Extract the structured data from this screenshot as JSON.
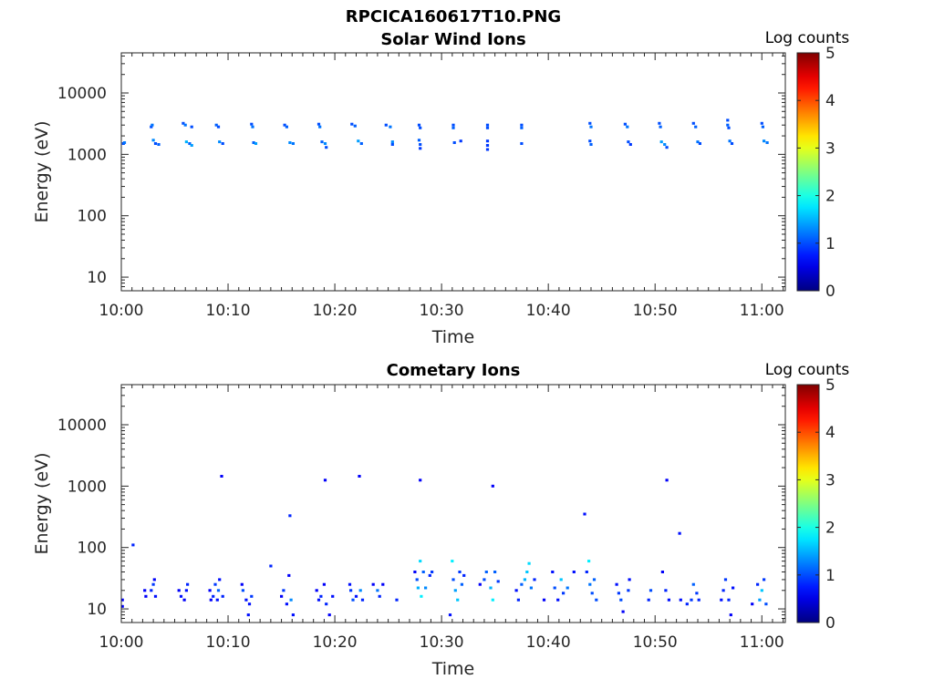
{
  "figure_title": "RPCICA160617T10.PNG",
  "chart_data": [
    {
      "type": "heatmap",
      "title": "Solar Wind Ions",
      "xlabel": "Time",
      "ylabel": "Energy (eV)",
      "x_ticks": [
        "10:00",
        "10:10",
        "10:20",
        "10:30",
        "10:40",
        "10:50",
        "11:00"
      ],
      "xlim_minutes": [
        0,
        62.2
      ],
      "y_scale": "log",
      "ylim": [
        6,
        45000
      ],
      "y_ticks": [
        10,
        100,
        1000,
        10000
      ],
      "y_tick_labels": [
        "10",
        "100",
        "1000",
        "10000"
      ],
      "colorbar": {
        "label": "Log counts",
        "range": [
          0,
          5
        ],
        "ticks": [
          "0",
          "1",
          "2",
          "3",
          "4",
          "5"
        ]
      },
      "points": [
        {
          "t": 0.2,
          "e": 1500,
          "v": 1.0
        },
        {
          "t": 0.3,
          "e": 1550,
          "v": 1.2
        },
        {
          "t": 2.8,
          "e": 2800,
          "v": 1.0
        },
        {
          "t": 2.9,
          "e": 3000,
          "v": 1.2
        },
        {
          "t": 3.0,
          "e": 1700,
          "v": 1.3
        },
        {
          "t": 3.2,
          "e": 1500,
          "v": 1.0
        },
        {
          "t": 3.5,
          "e": 1450,
          "v": 1.1
        },
        {
          "t": 5.8,
          "e": 3200,
          "v": 1.0
        },
        {
          "t": 6.0,
          "e": 3000,
          "v": 1.2
        },
        {
          "t": 6.1,
          "e": 1600,
          "v": 1.5
        },
        {
          "t": 6.4,
          "e": 1500,
          "v": 1.1
        },
        {
          "t": 6.6,
          "e": 1400,
          "v": 1.4
        },
        {
          "t": 6.6,
          "e": 2800,
          "v": 1.0
        },
        {
          "t": 8.9,
          "e": 3000,
          "v": 1.1
        },
        {
          "t": 9.1,
          "e": 2800,
          "v": 1.0
        },
        {
          "t": 9.2,
          "e": 1600,
          "v": 1.3
        },
        {
          "t": 9.5,
          "e": 1500,
          "v": 1.0
        },
        {
          "t": 12.2,
          "e": 3100,
          "v": 1.0
        },
        {
          "t": 12.3,
          "e": 2800,
          "v": 1.2
        },
        {
          "t": 12.4,
          "e": 1550,
          "v": 1.1
        },
        {
          "t": 12.6,
          "e": 1500,
          "v": 1.4
        },
        {
          "t": 15.3,
          "e": 3000,
          "v": 1.0
        },
        {
          "t": 15.5,
          "e": 2800,
          "v": 1.1
        },
        {
          "t": 15.8,
          "e": 1550,
          "v": 1.3
        },
        {
          "t": 16.1,
          "e": 1500,
          "v": 1.2
        },
        {
          "t": 18.5,
          "e": 3100,
          "v": 1.0
        },
        {
          "t": 18.6,
          "e": 2800,
          "v": 1.2
        },
        {
          "t": 18.8,
          "e": 1600,
          "v": 1.1
        },
        {
          "t": 19.1,
          "e": 1500,
          "v": 1.3
        },
        {
          "t": 19.2,
          "e": 1300,
          "v": 1.0
        },
        {
          "t": 21.6,
          "e": 3100,
          "v": 1.0
        },
        {
          "t": 21.9,
          "e": 2900,
          "v": 1.1
        },
        {
          "t": 22.2,
          "e": 1650,
          "v": 1.4
        },
        {
          "t": 22.5,
          "e": 1500,
          "v": 1.1
        },
        {
          "t": 24.8,
          "e": 3000,
          "v": 1.0
        },
        {
          "t": 25.2,
          "e": 2800,
          "v": 1.2
        },
        {
          "t": 25.4,
          "e": 1600,
          "v": 1.3
        },
        {
          "t": 25.4,
          "e": 1450,
          "v": 1.0
        },
        {
          "t": 27.9,
          "e": 3000,
          "v": 1.0
        },
        {
          "t": 28.0,
          "e": 2700,
          "v": 1.0
        },
        {
          "t": 27.9,
          "e": 1700,
          "v": 1.1
        },
        {
          "t": 28.0,
          "e": 1450,
          "v": 1.0
        },
        {
          "t": 28.0,
          "e": 1250,
          "v": 0.9
        },
        {
          "t": 31.1,
          "e": 3000,
          "v": 1.0
        },
        {
          "t": 31.1,
          "e": 2700,
          "v": 1.1
        },
        {
          "t": 31.2,
          "e": 1550,
          "v": 1.0
        },
        {
          "t": 31.8,
          "e": 1650,
          "v": 0.9
        },
        {
          "t": 34.3,
          "e": 3000,
          "v": 1.0
        },
        {
          "t": 34.3,
          "e": 2700,
          "v": 1.0
        },
        {
          "t": 34.3,
          "e": 1650,
          "v": 0.9
        },
        {
          "t": 34.3,
          "e": 1400,
          "v": 0.9
        },
        {
          "t": 34.3,
          "e": 1200,
          "v": 0.9
        },
        {
          "t": 37.5,
          "e": 3000,
          "v": 1.0
        },
        {
          "t": 37.5,
          "e": 2700,
          "v": 1.1
        },
        {
          "t": 37.5,
          "e": 1500,
          "v": 1.0
        },
        {
          "t": 43.9,
          "e": 3200,
          "v": 1.0
        },
        {
          "t": 44.0,
          "e": 2800,
          "v": 1.2
        },
        {
          "t": 43.9,
          "e": 1650,
          "v": 1.0
        },
        {
          "t": 44.0,
          "e": 1450,
          "v": 1.1
        },
        {
          "t": 47.2,
          "e": 3100,
          "v": 1.0
        },
        {
          "t": 47.4,
          "e": 2800,
          "v": 1.2
        },
        {
          "t": 47.5,
          "e": 1600,
          "v": 1.0
        },
        {
          "t": 47.7,
          "e": 1450,
          "v": 0.9
        },
        {
          "t": 50.4,
          "e": 3200,
          "v": 1.0
        },
        {
          "t": 50.5,
          "e": 2800,
          "v": 1.1
        },
        {
          "t": 50.6,
          "e": 1600,
          "v": 1.4
        },
        {
          "t": 50.9,
          "e": 1450,
          "v": 1.3
        },
        {
          "t": 51.1,
          "e": 1300,
          "v": 1.0
        },
        {
          "t": 53.6,
          "e": 3200,
          "v": 1.0
        },
        {
          "t": 53.8,
          "e": 2800,
          "v": 1.1
        },
        {
          "t": 54.0,
          "e": 1600,
          "v": 1.2
        },
        {
          "t": 54.2,
          "e": 1500,
          "v": 1.0
        },
        {
          "t": 56.8,
          "e": 3600,
          "v": 1.0
        },
        {
          "t": 56.8,
          "e": 3000,
          "v": 1.1
        },
        {
          "t": 56.9,
          "e": 2700,
          "v": 1.0
        },
        {
          "t": 57.0,
          "e": 1650,
          "v": 1.2
        },
        {
          "t": 57.2,
          "e": 1500,
          "v": 1.0
        },
        {
          "t": 60.0,
          "e": 3200,
          "v": 1.0
        },
        {
          "t": 60.1,
          "e": 2800,
          "v": 1.1
        },
        {
          "t": 60.2,
          "e": 1650,
          "v": 1.3
        },
        {
          "t": 60.5,
          "e": 1550,
          "v": 1.2
        }
      ]
    },
    {
      "type": "heatmap",
      "title": "Cometary Ions",
      "xlabel": "Time",
      "ylabel": "Energy (eV)",
      "x_ticks": [
        "10:00",
        "10:10",
        "10:20",
        "10:30",
        "10:40",
        "10:50",
        "11:00"
      ],
      "xlim_minutes": [
        0,
        62.2
      ],
      "y_scale": "log",
      "ylim": [
        6,
        45000
      ],
      "y_ticks": [
        10,
        100,
        1000,
        10000
      ],
      "y_tick_labels": [
        "10",
        "100",
        "1000",
        "10000"
      ],
      "colorbar": {
        "label": "Log counts",
        "range": [
          0,
          5
        ],
        "ticks": [
          "0",
          "1",
          "2",
          "3",
          "4",
          "5"
        ]
      },
      "points": [
        {
          "t": 0.1,
          "e": 14,
          "v": 0.6
        },
        {
          "t": 0.1,
          "e": 11,
          "v": 0.6
        },
        {
          "t": 1.1,
          "e": 110,
          "v": 0.8
        },
        {
          "t": 2.2,
          "e": 20,
          "v": 0.6
        },
        {
          "t": 2.3,
          "e": 16,
          "v": 0.6
        },
        {
          "t": 2.8,
          "e": 20,
          "v": 0.8
        },
        {
          "t": 3.0,
          "e": 25,
          "v": 0.9
        },
        {
          "t": 3.1,
          "e": 30,
          "v": 0.6
        },
        {
          "t": 3.2,
          "e": 16,
          "v": 0.7
        },
        {
          "t": 5.4,
          "e": 20,
          "v": 0.6
        },
        {
          "t": 5.6,
          "e": 16,
          "v": 0.7
        },
        {
          "t": 5.9,
          "e": 14,
          "v": 0.6
        },
        {
          "t": 6.1,
          "e": 20,
          "v": 0.7
        },
        {
          "t": 6.2,
          "e": 25,
          "v": 0.8
        },
        {
          "t": 8.3,
          "e": 20,
          "v": 0.6
        },
        {
          "t": 8.4,
          "e": 14,
          "v": 0.6
        },
        {
          "t": 8.6,
          "e": 16,
          "v": 0.8
        },
        {
          "t": 8.8,
          "e": 25,
          "v": 0.9
        },
        {
          "t": 9.0,
          "e": 14,
          "v": 0.7
        },
        {
          "t": 9.1,
          "e": 20,
          "v": 1.1
        },
        {
          "t": 9.2,
          "e": 30,
          "v": 0.7
        },
        {
          "t": 9.4,
          "e": 1450,
          "v": 0.6
        },
        {
          "t": 9.5,
          "e": 16,
          "v": 0.8
        },
        {
          "t": 11.3,
          "e": 25,
          "v": 0.6
        },
        {
          "t": 11.4,
          "e": 20,
          "v": 1.0
        },
        {
          "t": 11.7,
          "e": 14,
          "v": 0.7
        },
        {
          "t": 11.9,
          "e": 8,
          "v": 0.7
        },
        {
          "t": 12.0,
          "e": 12,
          "v": 0.7
        },
        {
          "t": 12.2,
          "e": 16,
          "v": 0.9
        },
        {
          "t": 14.0,
          "e": 50,
          "v": 0.8
        },
        {
          "t": 15.0,
          "e": 16,
          "v": 0.6
        },
        {
          "t": 15.2,
          "e": 20,
          "v": 0.9
        },
        {
          "t": 15.5,
          "e": 12,
          "v": 0.7
        },
        {
          "t": 15.7,
          "e": 35,
          "v": 0.6
        },
        {
          "t": 15.8,
          "e": 330,
          "v": 0.8
        },
        {
          "t": 15.9,
          "e": 14,
          "v": 1.3
        },
        {
          "t": 16.1,
          "e": 8,
          "v": 0.7
        },
        {
          "t": 18.3,
          "e": 20,
          "v": 0.6
        },
        {
          "t": 18.5,
          "e": 14,
          "v": 0.7
        },
        {
          "t": 18.7,
          "e": 16,
          "v": 0.8
        },
        {
          "t": 19.0,
          "e": 25,
          "v": 0.6
        },
        {
          "t": 19.1,
          "e": 1250,
          "v": 0.6
        },
        {
          "t": 19.2,
          "e": 12,
          "v": 0.8
        },
        {
          "t": 19.5,
          "e": 8,
          "v": 0.6
        },
        {
          "t": 19.8,
          "e": 16,
          "v": 0.7
        },
        {
          "t": 21.4,
          "e": 25,
          "v": 0.7
        },
        {
          "t": 21.5,
          "e": 20,
          "v": 0.9
        },
        {
          "t": 21.7,
          "e": 14,
          "v": 1.0
        },
        {
          "t": 22.0,
          "e": 16,
          "v": 0.7
        },
        {
          "t": 22.3,
          "e": 1450,
          "v": 0.6
        },
        {
          "t": 22.4,
          "e": 20,
          "v": 1.3
        },
        {
          "t": 22.6,
          "e": 14,
          "v": 0.8
        },
        {
          "t": 23.6,
          "e": 25,
          "v": 0.6
        },
        {
          "t": 24.0,
          "e": 20,
          "v": 1.2
        },
        {
          "t": 24.2,
          "e": 16,
          "v": 0.8
        },
        {
          "t": 24.5,
          "e": 25,
          "v": 0.6
        },
        {
          "t": 25.8,
          "e": 14,
          "v": 0.8
        },
        {
          "t": 27.5,
          "e": 40,
          "v": 0.6
        },
        {
          "t": 27.7,
          "e": 30,
          "v": 1.0
        },
        {
          "t": 27.8,
          "e": 22,
          "v": 1.5
        },
        {
          "t": 28.0,
          "e": 60,
          "v": 1.7
        },
        {
          "t": 28.0,
          "e": 1250,
          "v": 0.6
        },
        {
          "t": 28.1,
          "e": 16,
          "v": 1.8
        },
        {
          "t": 28.3,
          "e": 40,
          "v": 1.1
        },
        {
          "t": 28.5,
          "e": 22,
          "v": 1.3
        },
        {
          "t": 28.9,
          "e": 35,
          "v": 0.8
        },
        {
          "t": 29.1,
          "e": 40,
          "v": 0.9
        },
        {
          "t": 30.8,
          "e": 8,
          "v": 0.7
        },
        {
          "t": 31.0,
          "e": 60,
          "v": 1.8
        },
        {
          "t": 31.1,
          "e": 30,
          "v": 1.0
        },
        {
          "t": 31.3,
          "e": 20,
          "v": 1.4
        },
        {
          "t": 31.5,
          "e": 14,
          "v": 1.6
        },
        {
          "t": 31.7,
          "e": 40,
          "v": 0.9
        },
        {
          "t": 31.9,
          "e": 25,
          "v": 1.1
        },
        {
          "t": 32.1,
          "e": 35,
          "v": 0.8
        },
        {
          "t": 33.6,
          "e": 25,
          "v": 0.6
        },
        {
          "t": 34.0,
          "e": 30,
          "v": 1.0
        },
        {
          "t": 34.2,
          "e": 40,
          "v": 1.1
        },
        {
          "t": 34.6,
          "e": 22,
          "v": 1.5
        },
        {
          "t": 34.8,
          "e": 14,
          "v": 1.8
        },
        {
          "t": 34.8,
          "e": 1000,
          "v": 0.6
        },
        {
          "t": 35.0,
          "e": 40,
          "v": 1.1
        },
        {
          "t": 35.3,
          "e": 28,
          "v": 0.9
        },
        {
          "t": 37.0,
          "e": 20,
          "v": 0.7
        },
        {
          "t": 37.2,
          "e": 14,
          "v": 0.8
        },
        {
          "t": 37.5,
          "e": 25,
          "v": 1.1
        },
        {
          "t": 37.8,
          "e": 30,
          "v": 1.5
        },
        {
          "t": 38.0,
          "e": 40,
          "v": 1.6
        },
        {
          "t": 38.2,
          "e": 55,
          "v": 1.7
        },
        {
          "t": 38.4,
          "e": 22,
          "v": 1.2
        },
        {
          "t": 38.7,
          "e": 30,
          "v": 0.8
        },
        {
          "t": 39.6,
          "e": 14,
          "v": 0.6
        },
        {
          "t": 40.4,
          "e": 40,
          "v": 0.7
        },
        {
          "t": 40.6,
          "e": 22,
          "v": 1.0
        },
        {
          "t": 40.9,
          "e": 14,
          "v": 0.7
        },
        {
          "t": 41.2,
          "e": 30,
          "v": 1.6
        },
        {
          "t": 41.4,
          "e": 18,
          "v": 0.9
        },
        {
          "t": 41.8,
          "e": 22,
          "v": 1.2
        },
        {
          "t": 42.4,
          "e": 40,
          "v": 0.7
        },
        {
          "t": 43.4,
          "e": 350,
          "v": 0.7
        },
        {
          "t": 43.6,
          "e": 40,
          "v": 0.8
        },
        {
          "t": 43.8,
          "e": 60,
          "v": 1.8
        },
        {
          "t": 43.9,
          "e": 25,
          "v": 1.2
        },
        {
          "t": 44.1,
          "e": 18,
          "v": 1.0
        },
        {
          "t": 44.3,
          "e": 30,
          "v": 1.1
        },
        {
          "t": 44.5,
          "e": 14,
          "v": 1.0
        },
        {
          "t": 46.4,
          "e": 25,
          "v": 0.7
        },
        {
          "t": 46.6,
          "e": 18,
          "v": 0.9
        },
        {
          "t": 46.8,
          "e": 14,
          "v": 1.0
        },
        {
          "t": 47.0,
          "e": 9,
          "v": 0.6
        },
        {
          "t": 47.5,
          "e": 20,
          "v": 0.9
        },
        {
          "t": 47.6,
          "e": 30,
          "v": 0.7
        },
        {
          "t": 49.4,
          "e": 14,
          "v": 0.8
        },
        {
          "t": 49.6,
          "e": 20,
          "v": 1.0
        },
        {
          "t": 50.7,
          "e": 40,
          "v": 0.6
        },
        {
          "t": 51.0,
          "e": 20,
          "v": 0.8
        },
        {
          "t": 51.1,
          "e": 1250,
          "v": 0.6
        },
        {
          "t": 51.3,
          "e": 14,
          "v": 0.7
        },
        {
          "t": 52.3,
          "e": 170,
          "v": 0.7
        },
        {
          "t": 52.4,
          "e": 14,
          "v": 0.7
        },
        {
          "t": 53.0,
          "e": 12,
          "v": 0.8
        },
        {
          "t": 53.4,
          "e": 14,
          "v": 0.9
        },
        {
          "t": 53.6,
          "e": 25,
          "v": 1.1
        },
        {
          "t": 53.9,
          "e": 18,
          "v": 0.9
        },
        {
          "t": 54.1,
          "e": 14,
          "v": 0.8
        },
        {
          "t": 56.2,
          "e": 14,
          "v": 0.7
        },
        {
          "t": 56.4,
          "e": 20,
          "v": 0.8
        },
        {
          "t": 56.6,
          "e": 30,
          "v": 0.9
        },
        {
          "t": 56.9,
          "e": 14,
          "v": 0.8
        },
        {
          "t": 57.1,
          "e": 8,
          "v": 0.6
        },
        {
          "t": 57.3,
          "e": 22,
          "v": 0.7
        },
        {
          "t": 59.1,
          "e": 12,
          "v": 0.6
        },
        {
          "t": 59.6,
          "e": 25,
          "v": 0.8
        },
        {
          "t": 59.8,
          "e": 14,
          "v": 1.4
        },
        {
          "t": 60.0,
          "e": 20,
          "v": 1.6
        },
        {
          "t": 60.2,
          "e": 30,
          "v": 0.9
        },
        {
          "t": 60.4,
          "e": 12,
          "v": 1.0
        }
      ]
    }
  ]
}
